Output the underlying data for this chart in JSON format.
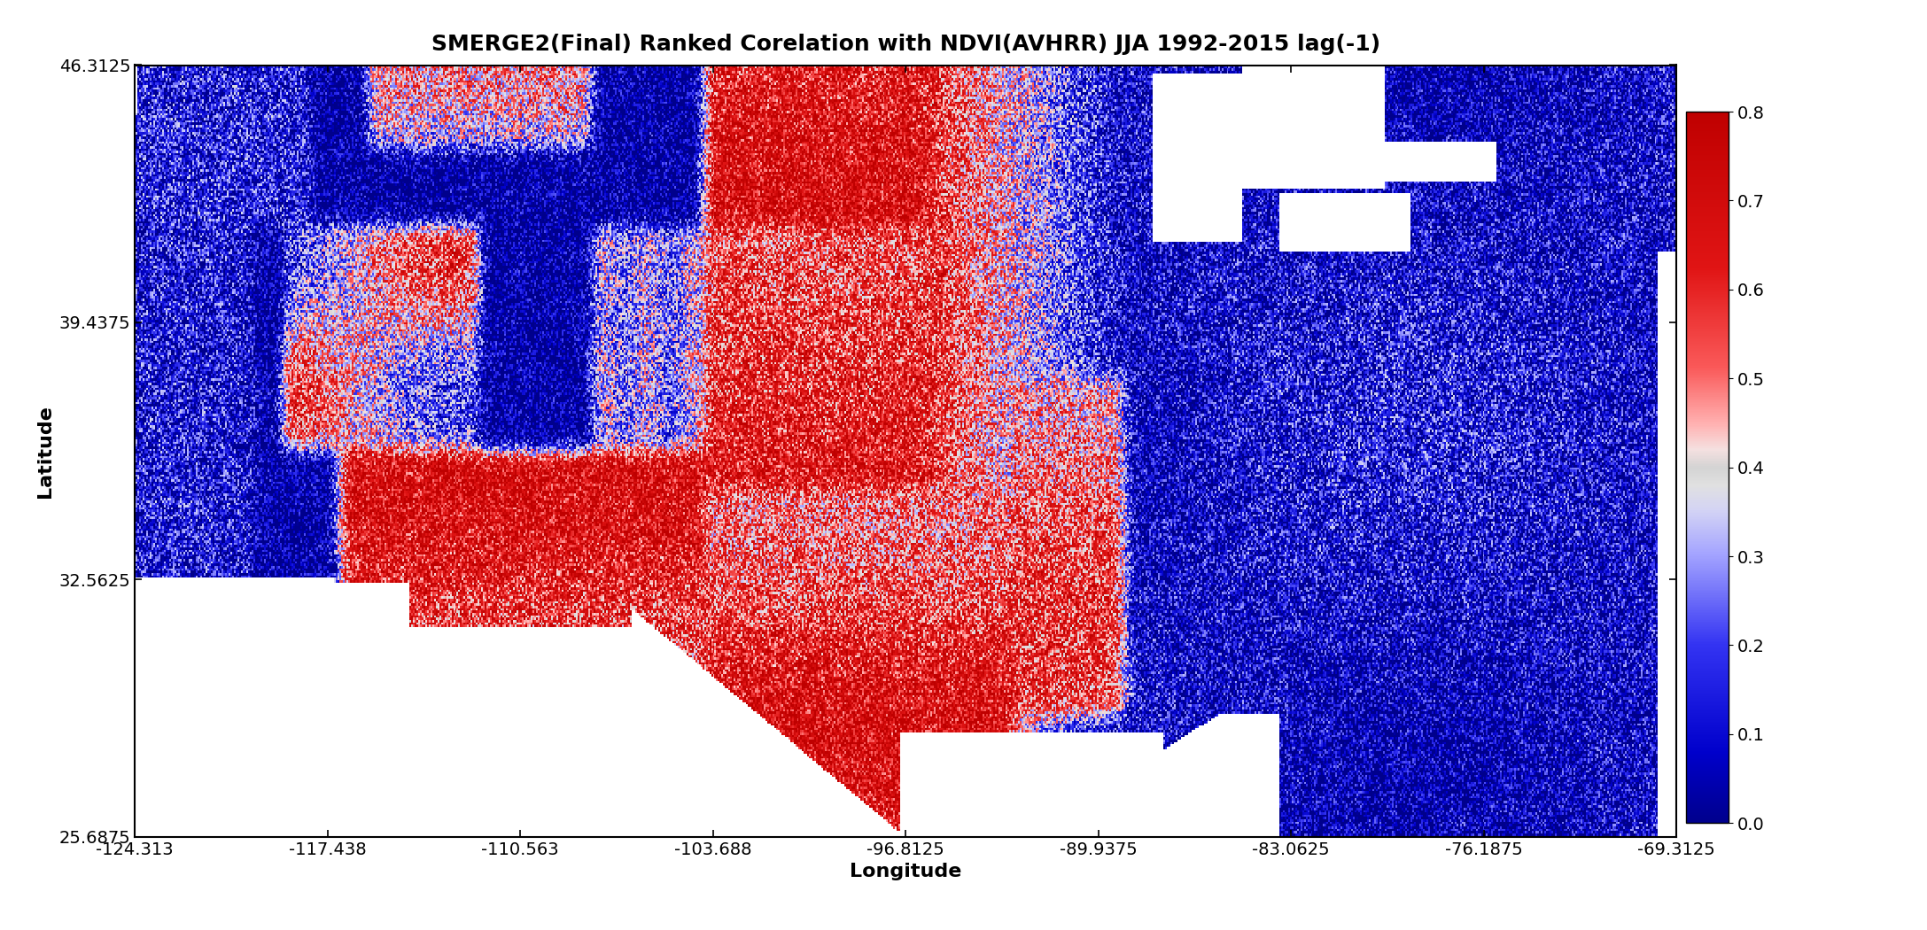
{
  "title": "SMERGE2(Final) Ranked Corelation with NDVI(AVHRR) JJA 1992-2015 lag(-1)",
  "xlabel": "Longitude",
  "ylabel": "Latitude",
  "xlim": [
    -124.313,
    -69.3125
  ],
  "ylim": [
    25.6875,
    46.3125
  ],
  "xticks": [
    -124.313,
    -117.438,
    -110.563,
    -103.688,
    -96.8125,
    -89.9375,
    -83.0625,
    -76.1875,
    -69.3125
  ],
  "yticks": [
    25.6875,
    32.5625,
    39.4375,
    46.3125
  ],
  "cbar_ticks": [
    0,
    0.1,
    0.2,
    0.3,
    0.4,
    0.5,
    0.6,
    0.7,
    0.8
  ],
  "vmin": 0,
  "vmax": 0.8,
  "figsize": [
    21.75,
    10.5
  ],
  "dpi": 100,
  "title_fontsize": 18,
  "axis_label_fontsize": 16,
  "tick_fontsize": 14,
  "cbar_label_fontsize": 14,
  "background_color": "#ffffff",
  "seed": 42,
  "nx": 880,
  "ny": 330
}
